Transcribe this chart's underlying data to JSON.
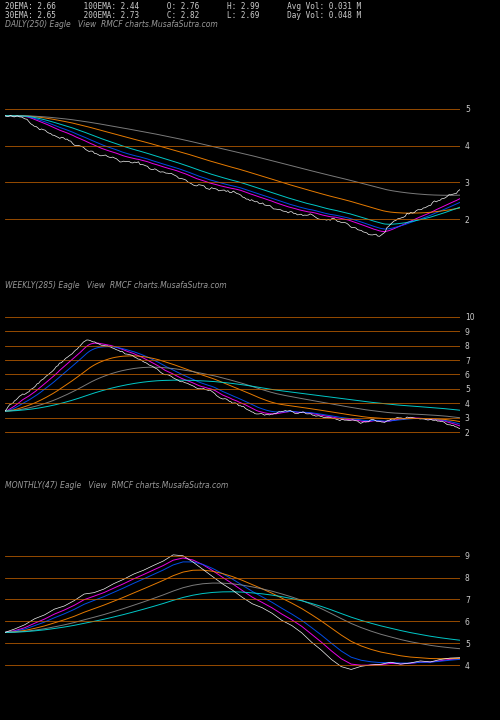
{
  "background_color": "#000000",
  "text_color": "#cccccc",
  "title_color": "#999999",
  "panel1": {
    "label": "DAILY(250) Eagle   View  RMCF charts.MusafaSutra.com",
    "stats_line1": "20EMA: 2.66      100EMA: 2.44      O: 2.76      H: 2.99      Avg Vol: 0.031 M",
    "stats_line2": "30EMA: 2.65      200EMA: 2.73      C: 2.82      L: 2.69      Day Vol: 0.048 M",
    "ylim": [
      1.5,
      6.0
    ],
    "yticks": [
      2,
      3,
      4,
      5
    ],
    "hlines": [
      2.0,
      3.0,
      4.0,
      5.0
    ],
    "n_points": 250
  },
  "panel2": {
    "label": "WEEKLY(285) Eagle   View  RMCF charts.MusafaSutra.com",
    "ylim": [
      0.5,
      12.0
    ],
    "yticks": [
      2,
      3,
      4,
      5,
      6,
      7,
      8,
      9,
      10
    ],
    "hlines": [
      2.0,
      3.0,
      4.0,
      5.0,
      6.0,
      7.0,
      8.0,
      9.0,
      10.0
    ],
    "n_points": 285
  },
  "panel3": {
    "label": "MONTHLY(47) Eagle   View  RMCF charts.MusafaSutra.com",
    "ylim": [
      2.5,
      12.0
    ],
    "yticks": [
      4,
      5,
      6,
      7,
      8,
      9
    ],
    "hlines": [
      4.0,
      5.0,
      6.0,
      7.0,
      8.0,
      9.0
    ],
    "n_points": 47
  },
  "hline_color": "#cc6600",
  "price_color": "#ffffff",
  "font_size_label": 5.5,
  "font_size_stats": 5.5,
  "font_size_tick": 5.5
}
